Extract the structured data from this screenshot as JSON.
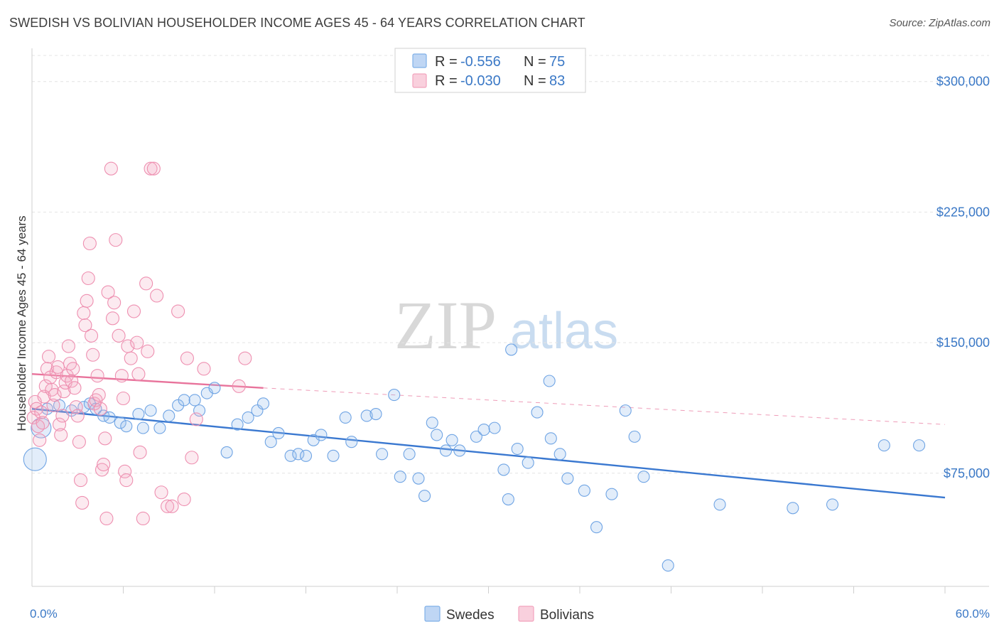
{
  "header": {
    "title": "SWEDISH VS BOLIVIAN HOUSEHOLDER INCOME AGES 45 - 64 YEARS CORRELATION CHART",
    "source": "Source: ZipAtlas.com"
  },
  "watermark": {
    "part1": "ZIP",
    "part2": "atlas"
  },
  "legend": {
    "rows": [
      {
        "r_label": "R =",
        "r_value": "-0.556",
        "n_label": "N =",
        "n_value": "75",
        "color": "#7fb0e8"
      },
      {
        "r_label": "R =",
        "r_value": "-0.030",
        "n_label": "N =",
        "n_value": "83",
        "color": "#f2a3bd"
      }
    ]
  },
  "bottom_legend": [
    "Swedes",
    "Bolivians"
  ],
  "chart_data": {
    "type": "scatter",
    "title": "SWEDISH VS BOLIVIAN HOUSEHOLDER INCOME AGES 45 - 64 YEARS CORRELATION CHART",
    "xlabel": "",
    "ylabel": "Householder Income Ages 45 - 64 years",
    "xlim": [
      0,
      60
    ],
    "ylim": [
      10000,
      315000
    ],
    "x_tick_labels": [
      "0.0%",
      "60.0%"
    ],
    "y_ticks": [
      75000,
      150000,
      225000,
      300000
    ],
    "y_tick_labels": [
      "$75,000",
      "$150,000",
      "$225,000",
      "$300,000"
    ],
    "grid": true,
    "legend_position": "top-center",
    "colors": {
      "swedes": "#3a78d0",
      "bolivians": "#e8739b"
    },
    "series": [
      {
        "name": "Swedes",
        "trend": {
          "x": [
            0,
            60
          ],
          "y": [
            112000,
            61000
          ],
          "dashed_to": null
        },
        "points": [
          [
            0.2,
            83000,
            16
          ],
          [
            0.6,
            101000,
            14
          ],
          [
            1.0,
            112000,
            8
          ],
          [
            1.8,
            114000,
            8
          ],
          [
            2.6,
            111000,
            8
          ],
          [
            3.4,
            113000,
            8
          ],
          [
            3.8,
            115000,
            8
          ],
          [
            4.2,
            112000,
            8
          ],
          [
            4.7,
            108000,
            8
          ],
          [
            5.1,
            107000,
            8
          ],
          [
            5.8,
            104000,
            8
          ],
          [
            6.2,
            102000,
            8
          ],
          [
            7.0,
            109000,
            8
          ],
          [
            7.3,
            101000,
            8
          ],
          [
            7.8,
            111000,
            8
          ],
          [
            8.4,
            101000,
            8
          ],
          [
            9.0,
            108000,
            8
          ],
          [
            9.6,
            114000,
            8
          ],
          [
            10.0,
            117000,
            8
          ],
          [
            10.7,
            117000,
            8
          ],
          [
            11.0,
            111000,
            8
          ],
          [
            11.5,
            121000,
            8
          ],
          [
            12.0,
            124000,
            8
          ],
          [
            12.8,
            87000,
            8
          ],
          [
            13.5,
            103000,
            8
          ],
          [
            14.2,
            107000,
            8
          ],
          [
            14.8,
            111000,
            8
          ],
          [
            15.2,
            115000,
            8
          ],
          [
            15.7,
            93000,
            8
          ],
          [
            16.2,
            98000,
            8
          ],
          [
            17.0,
            85000,
            8
          ],
          [
            17.5,
            86000,
            8
          ],
          [
            18.0,
            85000,
            8
          ],
          [
            18.5,
            94000,
            8
          ],
          [
            19.0,
            97000,
            8
          ],
          [
            19.8,
            85000,
            8
          ],
          [
            20.6,
            107000,
            8
          ],
          [
            21.0,
            93000,
            8
          ],
          [
            22.0,
            108000,
            8
          ],
          [
            22.6,
            109000,
            8
          ],
          [
            23.0,
            86000,
            8
          ],
          [
            23.8,
            120000,
            8
          ],
          [
            24.2,
            73000,
            8
          ],
          [
            24.8,
            86000,
            8
          ],
          [
            25.4,
            72000,
            8
          ],
          [
            25.8,
            62000,
            8
          ],
          [
            26.3,
            104000,
            8
          ],
          [
            26.6,
            97000,
            8
          ],
          [
            27.2,
            88000,
            8
          ],
          [
            27.6,
            94000,
            8
          ],
          [
            28.1,
            88000,
            8
          ],
          [
            29.2,
            96000,
            8
          ],
          [
            29.7,
            100000,
            8
          ],
          [
            30.4,
            101000,
            8
          ],
          [
            31.0,
            77000,
            8
          ],
          [
            31.3,
            60000,
            8
          ],
          [
            31.5,
            146000,
            8
          ],
          [
            31.9,
            89000,
            8
          ],
          [
            32.6,
            81000,
            8
          ],
          [
            33.2,
            110000,
            8
          ],
          [
            34.0,
            128000,
            8
          ],
          [
            34.1,
            95000,
            8
          ],
          [
            34.7,
            86000,
            8
          ],
          [
            35.2,
            72000,
            8
          ],
          [
            36.3,
            65000,
            8
          ],
          [
            37.1,
            44000,
            8
          ],
          [
            38.1,
            63000,
            8
          ],
          [
            39.0,
            111000,
            8
          ],
          [
            39.6,
            96000,
            8
          ],
          [
            40.2,
            73000,
            8
          ],
          [
            41.8,
            22000,
            8
          ],
          [
            45.2,
            57000,
            8
          ],
          [
            50.0,
            55000,
            8
          ],
          [
            52.6,
            57000,
            8
          ],
          [
            56.0,
            91000,
            8
          ],
          [
            58.3,
            91000,
            8
          ]
        ]
      },
      {
        "name": "Bolivians",
        "trend": {
          "x": [
            0,
            15.2
          ],
          "y": [
            132000,
            124000
          ],
          "dashed_to": {
            "x": 60,
            "y": 103000
          }
        },
        "points": [
          [
            0.1,
            107000,
            9
          ],
          [
            0.2,
            116000,
            9
          ],
          [
            0.3,
            112000,
            9
          ],
          [
            0.4,
            102000,
            9
          ],
          [
            0.5,
            94000,
            9
          ],
          [
            0.6,
            110000,
            9
          ],
          [
            0.7,
            104000,
            9
          ],
          [
            0.8,
            119000,
            9
          ],
          [
            0.9,
            125000,
            9
          ],
          [
            1.0,
            135000,
            9
          ],
          [
            1.1,
            142000,
            9
          ],
          [
            1.2,
            130000,
            9
          ],
          [
            1.3,
            123000,
            9
          ],
          [
            1.4,
            114000,
            9
          ],
          [
            1.5,
            120000,
            9
          ],
          [
            1.6,
            133000,
            9
          ],
          [
            1.7,
            136000,
            9
          ],
          [
            1.8,
            103000,
            9
          ],
          [
            1.9,
            97000,
            9
          ],
          [
            2.0,
            108000,
            9
          ],
          [
            2.1,
            122000,
            9
          ],
          [
            2.2,
            127000,
            9
          ],
          [
            2.3,
            131000,
            9
          ],
          [
            2.4,
            148000,
            9
          ],
          [
            2.5,
            138000,
            9
          ],
          [
            2.6,
            128000,
            9
          ],
          [
            2.7,
            135000,
            9
          ],
          [
            2.8,
            124000,
            9
          ],
          [
            2.9,
            113000,
            9
          ],
          [
            3.0,
            108000,
            9
          ],
          [
            3.1,
            93000,
            9
          ],
          [
            3.2,
            71000,
            9
          ],
          [
            3.3,
            58000,
            9
          ],
          [
            3.4,
            167000,
            9
          ],
          [
            3.5,
            160000,
            9
          ],
          [
            3.6,
            174000,
            9
          ],
          [
            3.7,
            187000,
            9
          ],
          [
            3.8,
            207000,
            9
          ],
          [
            3.9,
            154000,
            9
          ],
          [
            4.0,
            143000,
            9
          ],
          [
            4.1,
            115000,
            9
          ],
          [
            4.2,
            117000,
            9
          ],
          [
            4.3,
            131000,
            9
          ],
          [
            4.4,
            120000,
            9
          ],
          [
            4.5,
            112000,
            9
          ],
          [
            4.6,
            77000,
            9
          ],
          [
            4.7,
            80000,
            9
          ],
          [
            4.8,
            95000,
            9
          ],
          [
            4.9,
            49000,
            9
          ],
          [
            5.0,
            179000,
            9
          ],
          [
            5.2,
            250000,
            9
          ],
          [
            5.3,
            164000,
            9
          ],
          [
            5.4,
            173000,
            9
          ],
          [
            5.5,
            209000,
            9
          ],
          [
            5.7,
            154000,
            9
          ],
          [
            5.9,
            131000,
            9
          ],
          [
            6.0,
            118000,
            9
          ],
          [
            6.1,
            76000,
            9
          ],
          [
            6.2,
            71000,
            9
          ],
          [
            6.3,
            148000,
            9
          ],
          [
            6.5,
            141000,
            9
          ],
          [
            6.7,
            168000,
            9
          ],
          [
            6.9,
            150000,
            9
          ],
          [
            7.0,
            132000,
            9
          ],
          [
            7.1,
            87000,
            9
          ],
          [
            7.3,
            49000,
            9
          ],
          [
            7.5,
            184000,
            9
          ],
          [
            7.6,
            145000,
            9
          ],
          [
            7.8,
            250000,
            9
          ],
          [
            8.0,
            250000,
            9
          ],
          [
            8.2,
            177000,
            9
          ],
          [
            8.5,
            64000,
            9
          ],
          [
            8.9,
            56000,
            9
          ],
          [
            9.2,
            56000,
            9
          ],
          [
            9.6,
            168000,
            9
          ],
          [
            10.0,
            60000,
            9
          ],
          [
            10.2,
            141000,
            9
          ],
          [
            10.5,
            84000,
            9
          ],
          [
            10.8,
            106000,
            9
          ],
          [
            11.3,
            135000,
            9
          ],
          [
            13.6,
            125000,
            9
          ],
          [
            14.0,
            141000,
            9
          ]
        ]
      }
    ]
  }
}
